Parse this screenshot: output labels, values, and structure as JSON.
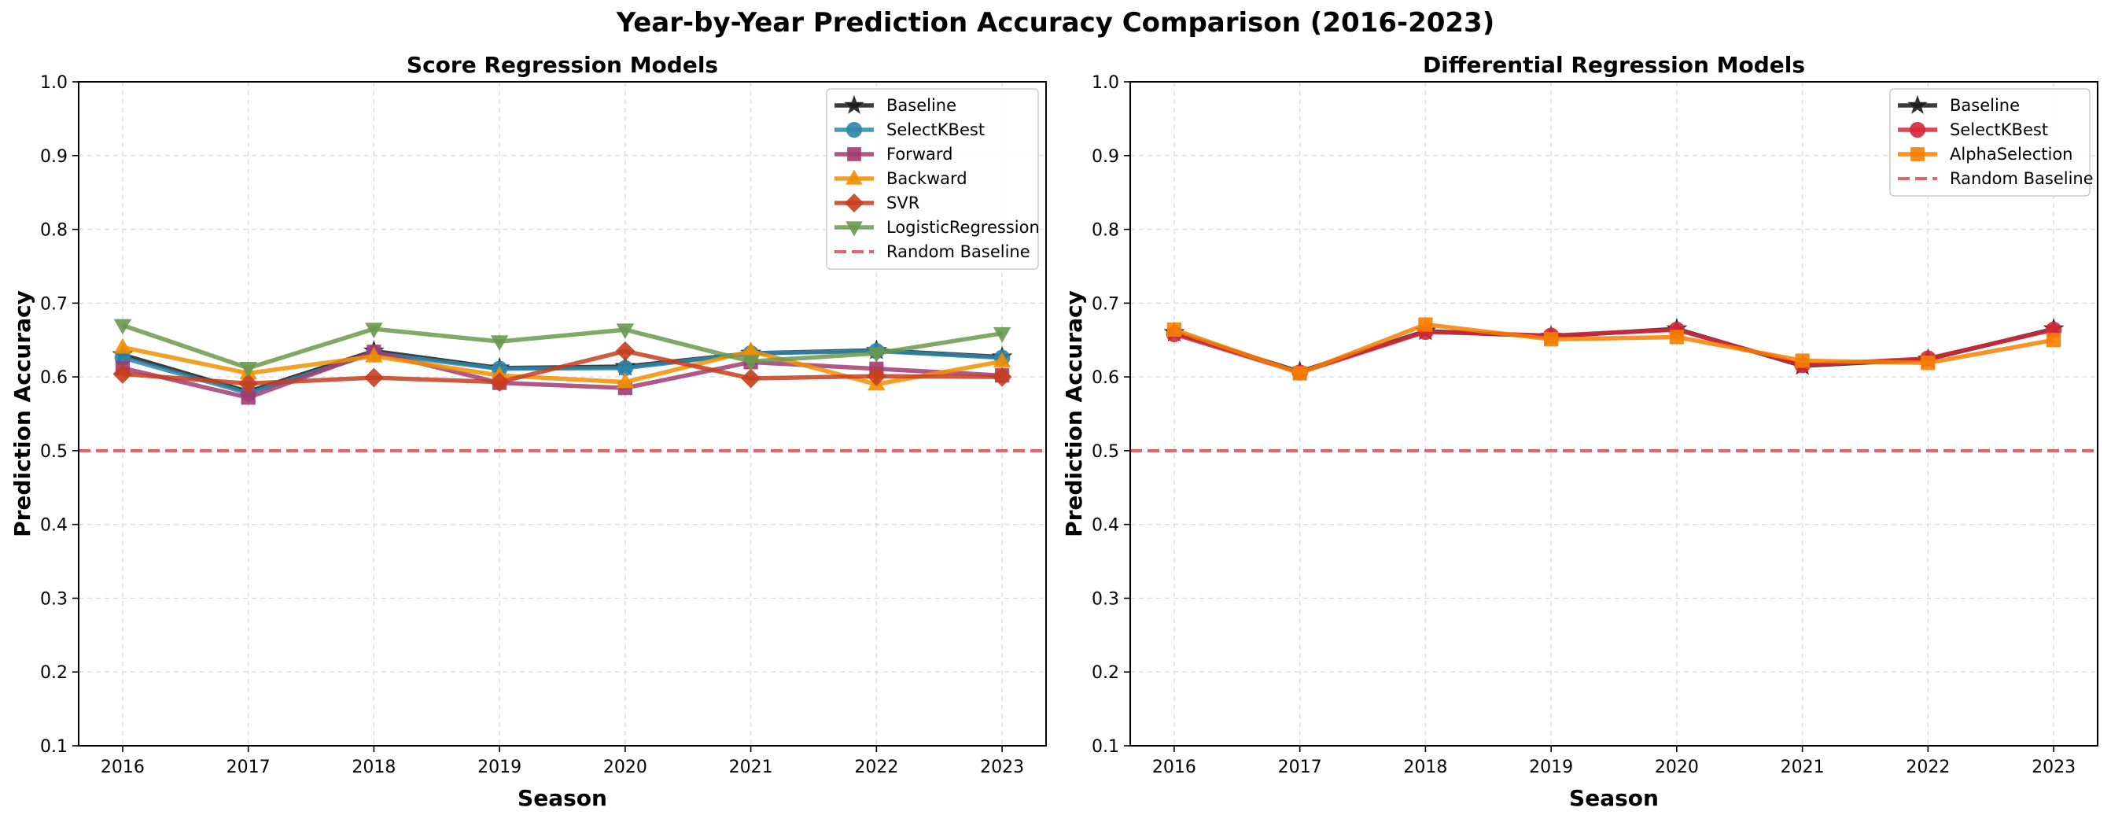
{
  "figure_title": "Year-by-Year Prediction Accuracy Comparison (2016-2023)",
  "chart_data": [
    {
      "type": "line",
      "title": "Score Regression Models",
      "xlabel": "Season",
      "ylabel": "Prediction Accuracy",
      "ylim": [
        0.1,
        1.0
      ],
      "yticks": [
        "0.1",
        "0.2",
        "0.3",
        "0.4",
        "0.5",
        "0.6",
        "0.7",
        "0.8",
        "0.9",
        "1.0"
      ],
      "x": [
        "2016",
        "2017",
        "2018",
        "2019",
        "2020",
        "2021",
        "2022",
        "2023"
      ],
      "grid": true,
      "legend_position": "top-right",
      "series": [
        {
          "name": "Baseline",
          "marker": "star",
          "color": "#1a1a1a",
          "values": [
            0.63,
            0.58,
            0.635,
            0.612,
            0.614,
            0.632,
            0.636,
            0.627
          ]
        },
        {
          "name": "SelectKBest",
          "marker": "circle",
          "color": "#2e86ab",
          "values": [
            0.626,
            0.578,
            0.632,
            0.611,
            0.612,
            0.632,
            0.635,
            0.626
          ]
        },
        {
          "name": "Forward",
          "marker": "square",
          "color": "#a23b72",
          "values": [
            0.612,
            0.572,
            0.634,
            0.592,
            0.585,
            0.62,
            0.611,
            0.602
          ]
        },
        {
          "name": "Backward",
          "marker": "triangle-up",
          "color": "#f18f01",
          "values": [
            0.64,
            0.605,
            0.628,
            0.602,
            0.593,
            0.635,
            0.59,
            0.621
          ]
        },
        {
          "name": "SVR",
          "marker": "diamond",
          "color": "#c73e1d",
          "values": [
            0.604,
            0.591,
            0.599,
            0.593,
            0.635,
            0.598,
            0.601,
            0.6
          ]
        },
        {
          "name": "LogisticRegression",
          "marker": "triangle-down",
          "color": "#6a994e",
          "values": [
            0.67,
            0.612,
            0.665,
            0.648,
            0.664,
            0.621,
            0.632,
            0.659
          ]
        }
      ],
      "reference_line": {
        "name": "Random Baseline",
        "y": 0.5,
        "color": "#e63946",
        "style": "dashed"
      }
    },
    {
      "type": "line",
      "title": "Differential Regression Models",
      "xlabel": "Season",
      "ylabel": "Prediction Accuracy",
      "ylim": [
        0.1,
        1.0
      ],
      "yticks": [
        "0.1",
        "0.2",
        "0.3",
        "0.4",
        "0.5",
        "0.6",
        "0.7",
        "0.8",
        "0.9",
        "1.0"
      ],
      "x": [
        "2016",
        "2017",
        "2018",
        "2019",
        "2020",
        "2021",
        "2022",
        "2023"
      ],
      "grid": true,
      "legend_position": "top-right",
      "series": [
        {
          "name": "Baseline",
          "marker": "star",
          "color": "#1a1a1a",
          "values": [
            0.66,
            0.607,
            0.662,
            0.655,
            0.665,
            0.615,
            0.624,
            0.665
          ]
        },
        {
          "name": "SelectKBest",
          "marker": "circle",
          "color": "#d62839",
          "values": [
            0.658,
            0.606,
            0.661,
            0.656,
            0.664,
            0.616,
            0.625,
            0.664
          ]
        },
        {
          "name": "AlphaSelection",
          "marker": "square",
          "color": "#f77f00",
          "values": [
            0.664,
            0.605,
            0.671,
            0.651,
            0.654,
            0.622,
            0.619,
            0.65
          ]
        }
      ],
      "reference_line": {
        "name": "Random Baseline",
        "y": 0.5,
        "color": "#e63946",
        "style": "dashed"
      }
    }
  ]
}
